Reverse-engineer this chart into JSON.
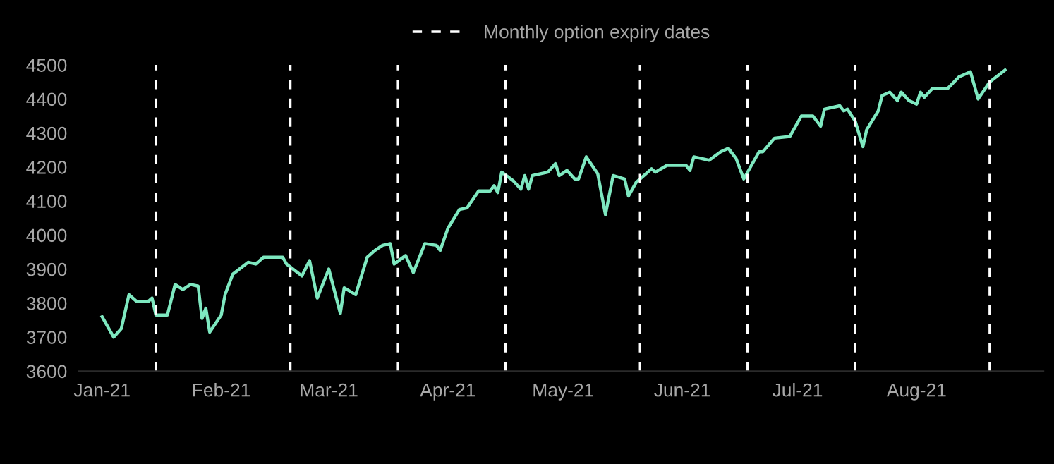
{
  "chart_data": {
    "type": "line",
    "legend": "top",
    "grid": false,
    "line_style": "solid",
    "marker": "none",
    "xlim": [
      "2020-12-26",
      "2021-09-03"
    ],
    "ylim": [
      3600,
      4500
    ],
    "xticks": [
      {
        "value": "2021-01-01",
        "label": "Jan-21"
      },
      {
        "value": "2021-02-01",
        "label": "Feb-21"
      },
      {
        "value": "2021-03-01",
        "label": "Mar-21"
      },
      {
        "value": "2021-04-01",
        "label": "Apr-21"
      },
      {
        "value": "2021-05-01",
        "label": "May-21"
      },
      {
        "value": "2021-06-01",
        "label": "Jun-21"
      },
      {
        "value": "2021-07-01",
        "label": "Jul-21"
      },
      {
        "value": "2021-08-01",
        "label": "Aug-21"
      }
    ],
    "yticks": [
      3600,
      3700,
      3800,
      3900,
      4000,
      4100,
      4200,
      4300,
      4400,
      4500
    ],
    "x": [
      "2021-01-01",
      "2021-01-04",
      "2021-01-06",
      "2021-01-08",
      "2021-01-10",
      "2021-01-13",
      "2021-01-14",
      "2021-01-15",
      "2021-01-18",
      "2021-01-20",
      "2021-01-22",
      "2021-01-24",
      "2021-01-26",
      "2021-01-27",
      "2021-01-28",
      "2021-01-29",
      "2021-02-01",
      "2021-02-02",
      "2021-02-04",
      "2021-02-08",
      "2021-02-10",
      "2021-02-12",
      "2021-02-17",
      "2021-02-18",
      "2021-02-22",
      "2021-02-24",
      "2021-02-26",
      "2021-03-01",
      "2021-03-04",
      "2021-03-05",
      "2021-03-08",
      "2021-03-11",
      "2021-03-13",
      "2021-03-15",
      "2021-03-17",
      "2021-03-18",
      "2021-03-21",
      "2021-03-23",
      "2021-03-26",
      "2021-03-29",
      "2021-03-30",
      "2021-04-01",
      "2021-04-04",
      "2021-04-06",
      "2021-04-09",
      "2021-04-12",
      "2021-04-13",
      "2021-04-14",
      "2021-04-15",
      "2021-04-18",
      "2021-04-20",
      "2021-04-21",
      "2021-04-22",
      "2021-04-23",
      "2021-04-27",
      "2021-04-29",
      "2021-04-30",
      "2021-05-02",
      "2021-05-04",
      "2021-05-05",
      "2021-05-07",
      "2021-05-10",
      "2021-05-12",
      "2021-05-14",
      "2021-05-17",
      "2021-05-18",
      "2021-05-20",
      "2021-05-24",
      "2021-05-25",
      "2021-05-28",
      "2021-06-02",
      "2021-06-03",
      "2021-06-04",
      "2021-06-08",
      "2021-06-11",
      "2021-06-13",
      "2021-06-15",
      "2021-06-17",
      "2021-06-21",
      "2021-06-22",
      "2021-06-25",
      "2021-06-29",
      "2021-07-02",
      "2021-07-05",
      "2021-07-07",
      "2021-07-08",
      "2021-07-12",
      "2021-07-13",
      "2021-07-14",
      "2021-07-16",
      "2021-07-18",
      "2021-07-19",
      "2021-07-22",
      "2021-07-23",
      "2021-07-25",
      "2021-07-27",
      "2021-07-28",
      "2021-07-30",
      "2021-08-01",
      "2021-08-02",
      "2021-08-03",
      "2021-08-05",
      "2021-08-09",
      "2021-08-12",
      "2021-08-15",
      "2021-08-17",
      "2021-08-20",
      "2021-08-24"
    ],
    "series": [
      {
        "color": "#7ee8c0",
        "values": [
          3760,
          3700,
          3725,
          3825,
          3805,
          3805,
          3815,
          3765,
          3765,
          3855,
          3840,
          3855,
          3850,
          3755,
          3785,
          3715,
          3765,
          3825,
          3885,
          3920,
          3915,
          3935,
          3935,
          3915,
          3880,
          3925,
          3815,
          3900,
          3770,
          3845,
          3825,
          3935,
          3955,
          3970,
          3975,
          3915,
          3940,
          3890,
          3975,
          3970,
          3955,
          4020,
          4075,
          4080,
          4130,
          4130,
          4145,
          4125,
          4185,
          4160,
          4135,
          4175,
          4135,
          4175,
          4185,
          4210,
          4175,
          4190,
          4165,
          4165,
          4230,
          4180,
          4060,
          4175,
          4165,
          4115,
          4155,
          4195,
          4185,
          4205,
          4205,
          4190,
          4230,
          4220,
          4245,
          4255,
          4225,
          4165,
          4245,
          4245,
          4285,
          4290,
          4350,
          4350,
          4320,
          4370,
          4380,
          4365,
          4370,
          4335,
          4260,
          4310,
          4365,
          4410,
          4420,
          4395,
          4420,
          4395,
          4385,
          4420,
          4405,
          4430,
          4430,
          4465,
          4480,
          4400,
          4450,
          4485
        ]
      }
    ],
    "ref_lines": [
      {
        "axis": "x",
        "value": "2021-01-15",
        "label": "Monthly option expiry dates",
        "color": "#ffffff",
        "line_style": "dashed"
      },
      {
        "axis": "x",
        "value": "2021-02-19",
        "color": "#ffffff",
        "line_style": "dashed"
      },
      {
        "axis": "x",
        "value": "2021-03-19",
        "color": "#ffffff",
        "line_style": "dashed"
      },
      {
        "axis": "x",
        "value": "2021-04-16",
        "color": "#ffffff",
        "line_style": "dashed"
      },
      {
        "axis": "x",
        "value": "2021-05-21",
        "color": "#ffffff",
        "line_style": "dashed"
      },
      {
        "axis": "x",
        "value": "2021-06-18",
        "color": "#ffffff",
        "line_style": "dashed"
      },
      {
        "axis": "x",
        "value": "2021-07-16",
        "color": "#ffffff",
        "line_style": "dashed"
      },
      {
        "axis": "x",
        "value": "2021-08-20",
        "color": "#ffffff",
        "line_style": "dashed"
      }
    ]
  }
}
